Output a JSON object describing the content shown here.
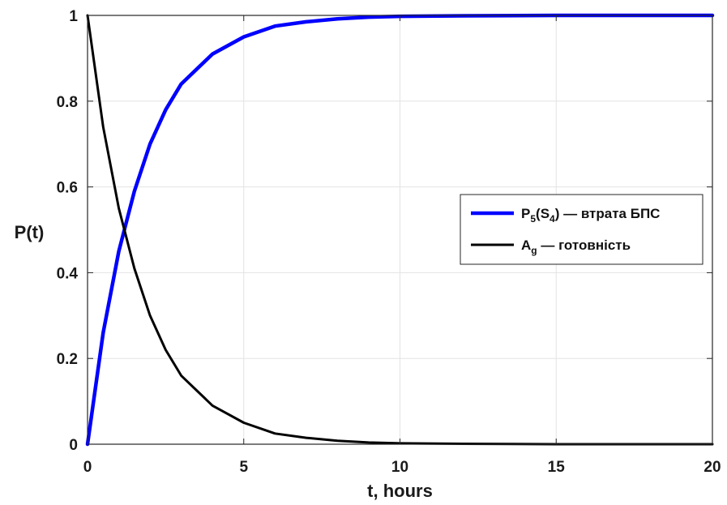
{
  "chart_data": {
    "type": "line",
    "xlabel": "t, hours",
    "ylabel": "P(t)",
    "xlim": [
      0,
      20
    ],
    "ylim": [
      0,
      1
    ],
    "xticks": [
      0,
      5,
      10,
      15,
      20
    ],
    "yticks": [
      0,
      0.2,
      0.4,
      0.6,
      0.8,
      1
    ],
    "xtick_labels": [
      "0",
      "5",
      "10",
      "15",
      "20"
    ],
    "ytick_labels": [
      "0",
      "0.2",
      "0.4",
      "0.6",
      "0.8",
      "1"
    ],
    "grid": true,
    "legend_position": "right",
    "x": [
      0,
      0.5,
      1,
      1.5,
      2,
      2.5,
      3,
      4,
      5,
      6,
      7,
      8,
      9,
      10,
      12,
      15,
      20
    ],
    "series": [
      {
        "name": "P5(S4) — втрата БПС",
        "legend_main": "P",
        "legend_sub1": "5",
        "legend_mid": "(S",
        "legend_sub2": "4",
        "legend_tail": ") — втрата БПС",
        "color": "#0000ff",
        "values": [
          0,
          0.26,
          0.45,
          0.59,
          0.7,
          0.78,
          0.84,
          0.91,
          0.95,
          0.975,
          0.985,
          0.992,
          0.996,
          0.998,
          0.999,
          1.0,
          1.0
        ]
      },
      {
        "name": "Ag — готовність",
        "legend_main": "A",
        "legend_sub1": "g",
        "legend_tail": " — готовність",
        "color": "#000000",
        "values": [
          1,
          0.74,
          0.55,
          0.41,
          0.3,
          0.22,
          0.16,
          0.09,
          0.05,
          0.025,
          0.015,
          0.008,
          0.004,
          0.002,
          0.001,
          0,
          0
        ]
      }
    ]
  }
}
